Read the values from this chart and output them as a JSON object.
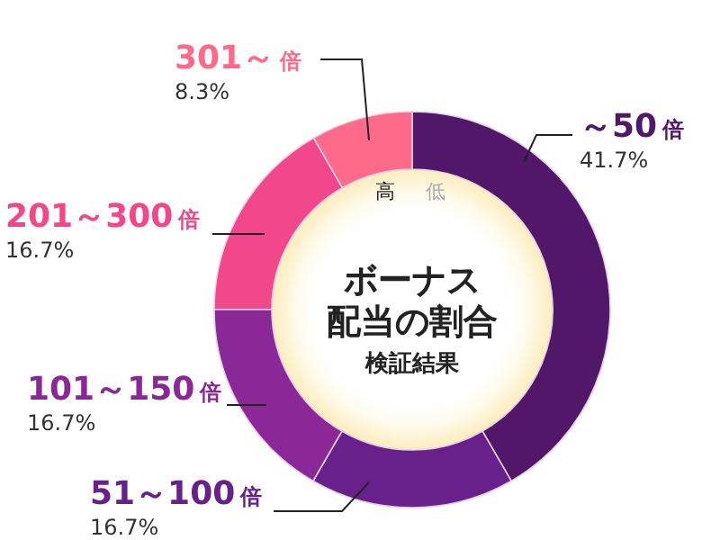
{
  "chart_data": {
    "type": "donut",
    "title": "ボーナス配当の割合",
    "subtitle": "検証結果",
    "categories": [
      "～50倍",
      "51～100倍",
      "101～150倍",
      "201～300倍",
      "301～倍"
    ],
    "values": [
      41.7,
      16.7,
      16.7,
      16.7,
      8.3
    ],
    "value_labels": [
      "41.7%",
      "16.7%",
      "16.7%",
      "16.7%",
      "8.3%"
    ],
    "colors": [
      "#51186a",
      "#68208a",
      "#8b2898",
      "#f2478a",
      "#fd6a8a"
    ],
    "annotations": [
      "高",
      "低"
    ]
  }
}
